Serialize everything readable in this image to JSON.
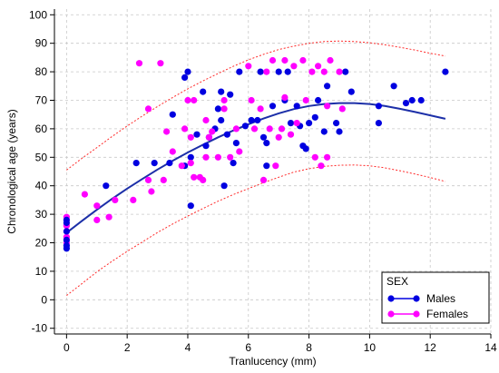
{
  "chart_data": {
    "type": "scatter",
    "xlabel": "Tranlucency (mm)",
    "ylabel": "Chronological age (years)",
    "xlim": [
      -0.4,
      14
    ],
    "ylim": [
      -12,
      102
    ],
    "x_ticks": [
      0,
      2,
      4,
      6,
      8,
      10,
      12,
      14
    ],
    "y_ticks": [
      -10,
      0,
      10,
      20,
      30,
      40,
      50,
      60,
      70,
      80,
      90,
      100
    ],
    "grid": true,
    "legend": {
      "title": "SEX",
      "placement": "bottom-right",
      "entries": [
        {
          "label": "Males",
          "color": "#0000e0"
        },
        {
          "label": "Females",
          "color": "#ff00ff"
        }
      ]
    },
    "series": [
      {
        "name": "Males",
        "color": "#0000e0",
        "points": [
          [
            0,
            18
          ],
          [
            0,
            19
          ],
          [
            0,
            21
          ],
          [
            0,
            24
          ],
          [
            0,
            27
          ],
          [
            0,
            28
          ],
          [
            1.3,
            40
          ],
          [
            2.3,
            48
          ],
          [
            2.9,
            48
          ],
          [
            3.4,
            48
          ],
          [
            3.5,
            65
          ],
          [
            3.9,
            78
          ],
          [
            3.9,
            47
          ],
          [
            4.0,
            80
          ],
          [
            4.1,
            50
          ],
          [
            4.1,
            33
          ],
          [
            4.3,
            58
          ],
          [
            4.5,
            73
          ],
          [
            4.6,
            54
          ],
          [
            4.7,
            57
          ],
          [
            4.9,
            60
          ],
          [
            5.0,
            67
          ],
          [
            5.1,
            63
          ],
          [
            5.1,
            73
          ],
          [
            5.2,
            40
          ],
          [
            5.3,
            58
          ],
          [
            5.4,
            72
          ],
          [
            5.5,
            48
          ],
          [
            5.6,
            55
          ],
          [
            5.7,
            80
          ],
          [
            5.9,
            61
          ],
          [
            6.1,
            63
          ],
          [
            6.3,
            63
          ],
          [
            6.4,
            80
          ],
          [
            6.5,
            57
          ],
          [
            6.6,
            47
          ],
          [
            6.6,
            55
          ],
          [
            6.8,
            68
          ],
          [
            7.0,
            80
          ],
          [
            7.2,
            70
          ],
          [
            7.3,
            80
          ],
          [
            7.4,
            62
          ],
          [
            7.6,
            68
          ],
          [
            7.7,
            61
          ],
          [
            7.8,
            54
          ],
          [
            7.9,
            53
          ],
          [
            8.0,
            62
          ],
          [
            8.2,
            64
          ],
          [
            8.3,
            70
          ],
          [
            8.5,
            59
          ],
          [
            8.6,
            75
          ],
          [
            8.9,
            62
          ],
          [
            9.0,
            59
          ],
          [
            9.2,
            80
          ],
          [
            9.4,
            73
          ],
          [
            10.3,
            62
          ],
          [
            10.3,
            68
          ],
          [
            10.8,
            75
          ],
          [
            11.2,
            69
          ],
          [
            11.4,
            70
          ],
          [
            11.7,
            70
          ],
          [
            12.5,
            80
          ]
        ]
      },
      {
        "name": "Females",
        "color": "#ff00ff",
        "points": [
          [
            0,
            20
          ],
          [
            0,
            22
          ],
          [
            0,
            26
          ],
          [
            0,
            29
          ],
          [
            0.6,
            37
          ],
          [
            1.0,
            28
          ],
          [
            1.0,
            33
          ],
          [
            1.4,
            29
          ],
          [
            1.6,
            35
          ],
          [
            2.2,
            35
          ],
          [
            2.4,
            83
          ],
          [
            2.7,
            67
          ],
          [
            2.7,
            42
          ],
          [
            2.8,
            38
          ],
          [
            3.1,
            83
          ],
          [
            3.2,
            42
          ],
          [
            3.3,
            59
          ],
          [
            3.5,
            52
          ],
          [
            3.8,
            47
          ],
          [
            3.9,
            60
          ],
          [
            4.0,
            70
          ],
          [
            4.1,
            57
          ],
          [
            4.1,
            48
          ],
          [
            4.2,
            70
          ],
          [
            4.2,
            43
          ],
          [
            4.4,
            43
          ],
          [
            4.5,
            42
          ],
          [
            4.6,
            50
          ],
          [
            4.6,
            63
          ],
          [
            4.7,
            57
          ],
          [
            4.8,
            59
          ],
          [
            5.0,
            50
          ],
          [
            5.2,
            67
          ],
          [
            5.2,
            70
          ],
          [
            5.4,
            50
          ],
          [
            5.6,
            60
          ],
          [
            5.7,
            52
          ],
          [
            6.0,
            82
          ],
          [
            6.1,
            70
          ],
          [
            6.2,
            60
          ],
          [
            6.4,
            67
          ],
          [
            6.5,
            42
          ],
          [
            6.6,
            80
          ],
          [
            6.7,
            60
          ],
          [
            6.8,
            84
          ],
          [
            6.9,
            47
          ],
          [
            7.0,
            57
          ],
          [
            7.1,
            60
          ],
          [
            7.2,
            84
          ],
          [
            7.2,
            71
          ],
          [
            7.4,
            58
          ],
          [
            7.5,
            82
          ],
          [
            7.6,
            62
          ],
          [
            7.8,
            84
          ],
          [
            7.9,
            70
          ],
          [
            8.1,
            80
          ],
          [
            8.2,
            50
          ],
          [
            8.3,
            82
          ],
          [
            8.4,
            47
          ],
          [
            8.5,
            80
          ],
          [
            8.6,
            50
          ],
          [
            8.6,
            68
          ],
          [
            8.7,
            84
          ],
          [
            9.0,
            80
          ],
          [
            9.1,
            67
          ]
        ]
      }
    ],
    "fit": {
      "color": "#1c2fa8",
      "x": [
        0,
        0.5,
        1,
        1.5,
        2,
        2.5,
        3,
        3.5,
        4,
        4.5,
        5,
        5.5,
        6,
        6.5,
        7,
        7.5,
        8,
        8.5,
        9,
        9.5,
        10,
        10.5,
        11,
        11.5,
        12,
        12.5
      ],
      "center": [
        23.5,
        27.6,
        31.6,
        35.4,
        39.0,
        42.4,
        45.7,
        48.8,
        51.7,
        54.4,
        57.0,
        59.4,
        61.6,
        63.6,
        65.4,
        66.9,
        68.0,
        68.7,
        69.0,
        69.0,
        68.7,
        68.0,
        67.0,
        65.9,
        64.7,
        63.5
      ],
      "upper": [
        45.5,
        49.6,
        53.4,
        57.3,
        61.0,
        64.5,
        67.8,
        71.0,
        74.0,
        76.8,
        79.4,
        81.9,
        84.2,
        86.1,
        87.8,
        89.0,
        90.0,
        90.6,
        90.8,
        90.6,
        90.2,
        89.5,
        88.6,
        87.6,
        86.5,
        85.5
      ],
      "lower": [
        1.5,
        5.6,
        9.8,
        13.5,
        17.0,
        20.3,
        23.6,
        26.6,
        29.4,
        32.0,
        34.6,
        36.9,
        39.0,
        41.1,
        43.0,
        44.8,
        46.0,
        46.8,
        47.2,
        47.3,
        47.0,
        46.3,
        45.3,
        44.1,
        42.9,
        41.5
      ]
    }
  }
}
